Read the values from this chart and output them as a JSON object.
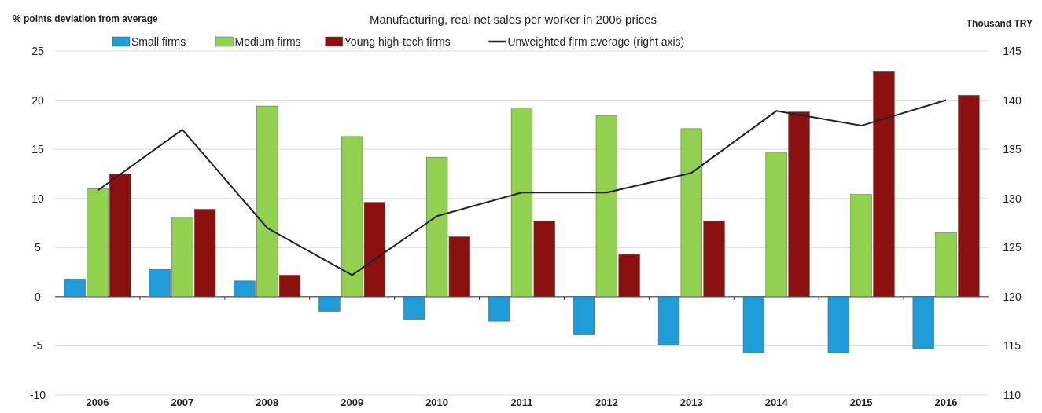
{
  "chart_data": {
    "type": "bar",
    "title": "Manufacturing, real net sales per worker in 2006 prices",
    "ylabel": "% points deviation from average",
    "y2label": "Thousand TRY",
    "categories": [
      "2006",
      "2007",
      "2008",
      "2009",
      "2010",
      "2011",
      "2012",
      "2013",
      "2014",
      "2015",
      "2016"
    ],
    "series": [
      {
        "name": "Small firms",
        "color": "#1f9bd7",
        "values": [
          1.8,
          2.8,
          1.6,
          -1.5,
          -2.3,
          -2.5,
          -3.9,
          -4.9,
          -5.7,
          -5.7,
          -5.3
        ]
      },
      {
        "name": "Medium firms",
        "color": "#92d050",
        "values": [
          11,
          8.1,
          19.4,
          16.3,
          14.2,
          19.2,
          18.4,
          17.1,
          14.7,
          10.4,
          6.5
        ]
      },
      {
        "name": "Young high-tech firms",
        "color": "#8b1010",
        "values": [
          12.5,
          8.9,
          2.2,
          9.6,
          6.1,
          7.7,
          4.3,
          7.7,
          18.8,
          22.9,
          20.5
        ]
      },
      {
        "name": "Unweighted firm average (right axis)",
        "type": "line",
        "axis": "y2",
        "color": "#222222",
        "values": [
          130.8,
          137,
          127,
          122.2,
          128.2,
          130.6,
          130.6,
          132.6,
          138.9,
          137.4,
          140
        ]
      }
    ],
    "ylim": [
      -10,
      25
    ],
    "yticks": [
      -10,
      -5,
      0,
      5,
      10,
      15,
      20,
      25
    ],
    "y2lim": [
      110,
      145
    ],
    "y2ticks": [
      110,
      115,
      120,
      125,
      130,
      135,
      140,
      145
    ],
    "grid": "y",
    "legend": "top"
  }
}
